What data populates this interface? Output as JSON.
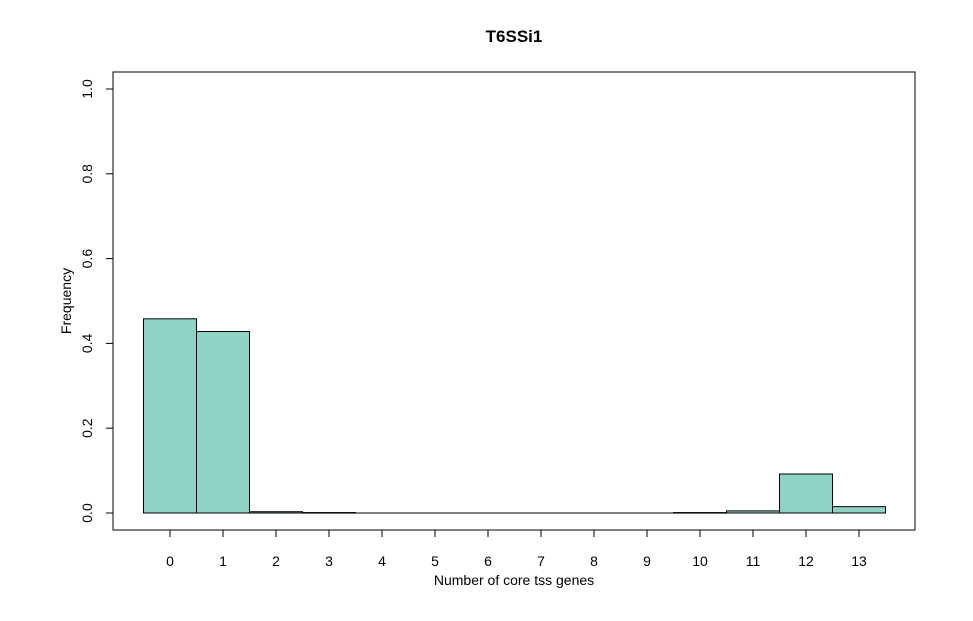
{
  "chart_data": {
    "type": "bar",
    "title": "T6SSi1",
    "xlabel": "Number of core tss genes",
    "ylabel": "Frequency",
    "categories": [
      "0",
      "1",
      "2",
      "3",
      "4",
      "5",
      "6",
      "7",
      "8",
      "9",
      "10",
      "11",
      "12",
      "13"
    ],
    "values": [
      0.458,
      0.428,
      0.003,
      0.001,
      0,
      0,
      0,
      0,
      0,
      0,
      0.001,
      0.005,
      0.092,
      0.015
    ],
    "ylim": [
      0,
      1.0
    ],
    "yticks": [
      "0.0",
      "0.2",
      "0.4",
      "0.6",
      "0.8",
      "1.0"
    ],
    "bar_color": "#8fd3c7",
    "grid": false,
    "legend": "none"
  }
}
